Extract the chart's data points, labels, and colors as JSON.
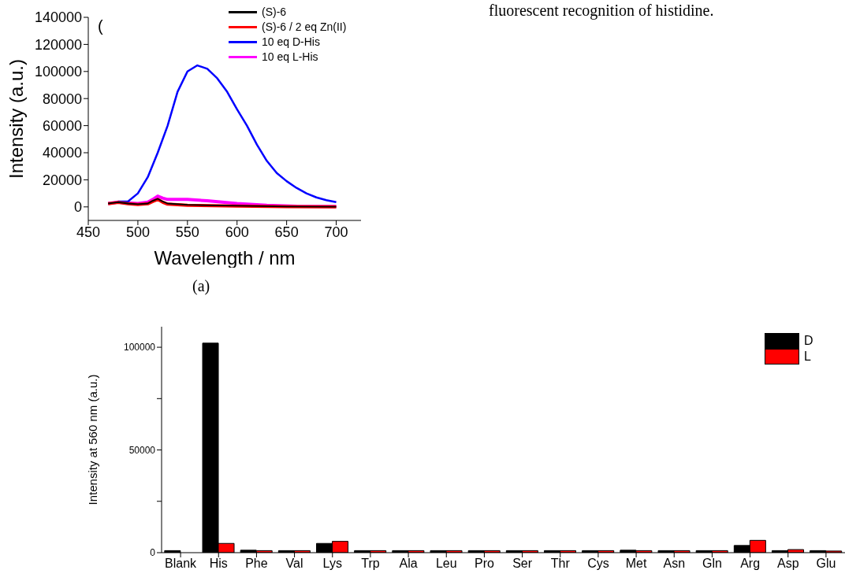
{
  "chart_data": [
    {
      "type": "line",
      "xlabel": "Wavelength / nm",
      "ylabel": "Intensity (a.u.)",
      "xlim": [
        450,
        725
      ],
      "xticks": [
        450,
        500,
        550,
        600,
        650,
        700
      ],
      "ylim": [
        -10000,
        140000
      ],
      "yticks": [
        0,
        20000,
        40000,
        60000,
        80000,
        100000,
        120000,
        140000
      ],
      "grid": false,
      "legend": "top right",
      "marker": "none",
      "line_style": "solid",
      "annotations": [
        "(",
        "(a)",
        "fluorescent recognition of histidine."
      ],
      "series": [
        {
          "name": "(S)-6",
          "color": "#000000",
          "x": [
            470,
            480,
            490,
            500,
            510,
            515,
            520,
            525,
            530,
            550,
            575,
            600,
            650,
            700
          ],
          "values": [
            2500,
            3500,
            2500,
            2000,
            2500,
            4500,
            6000,
            4000,
            2500,
            1500,
            1100,
            800,
            300,
            100
          ]
        },
        {
          "name": "(S)-6 / 2 eq Zn(II)",
          "color": "#ff0000",
          "x": [
            470,
            480,
            490,
            500,
            510,
            515,
            520,
            525,
            530,
            550,
            575,
            600,
            650,
            700
          ],
          "values": [
            2300,
            3300,
            2300,
            1800,
            2300,
            4000,
            5500,
            3500,
            2000,
            1200,
            900,
            600,
            200,
            0
          ]
        },
        {
          "name": "10 eq D-His",
          "color": "#0000ff",
          "x": [
            480,
            490,
            500,
            510,
            520,
            530,
            540,
            550,
            560,
            570,
            580,
            590,
            600,
            610,
            620,
            630,
            640,
            650,
            660,
            670,
            680,
            690,
            700
          ],
          "values": [
            4000,
            4000,
            10000,
            22000,
            40000,
            60000,
            85000,
            100000,
            104500,
            102000,
            95000,
            85000,
            72000,
            60000,
            46000,
            34000,
            25000,
            19000,
            14000,
            10000,
            7000,
            5000,
            3500
          ]
        },
        {
          "name": "10 eq L-His",
          "color": "#ff00ff",
          "x": [
            470,
            480,
            490,
            500,
            510,
            515,
            520,
            525,
            530,
            550,
            570,
            600,
            630,
            660,
            700
          ],
          "values": [
            2500,
            3500,
            3000,
            2500,
            3500,
            5500,
            8000,
            6500,
            5500,
            5500,
            4500,
            2500,
            1200,
            500,
            300
          ]
        }
      ]
    },
    {
      "type": "bar",
      "ylabel": "Intensity at 560 nm (a.u.)",
      "ylim": [
        0,
        110000
      ],
      "yticks": [
        0,
        {
          "value": 25000,
          "label": null
        },
        50000,
        {
          "value": 75000,
          "label": null
        },
        100000
      ],
      "grid": false,
      "legend": "top right",
      "categories": [
        "Blank",
        "His",
        "Phe",
        "Val",
        "Lys",
        "Trp",
        "Ala",
        "Leu",
        "Pro",
        "Ser",
        "Thr",
        "Cys",
        "Met",
        "Asn",
        "Gln",
        "Arg",
        "Asp",
        "Glu"
      ],
      "series": [
        {
          "name": "D",
          "color": "#000000",
          "values": [
            1000,
            102000,
            1200,
            1000,
            4500,
            1000,
            1000,
            1000,
            1000,
            1000,
            1000,
            1000,
            1200,
            1000,
            1000,
            3500,
            1000,
            1000
          ]
        },
        {
          "name": "L",
          "color": "#ff0000",
          "values": [
            0,
            4500,
            1000,
            1000,
            5500,
            1000,
            1000,
            1000,
            1000,
            1000,
            1000,
            1000,
            1000,
            1000,
            1000,
            6000,
            1500,
            800
          ]
        }
      ]
    }
  ]
}
